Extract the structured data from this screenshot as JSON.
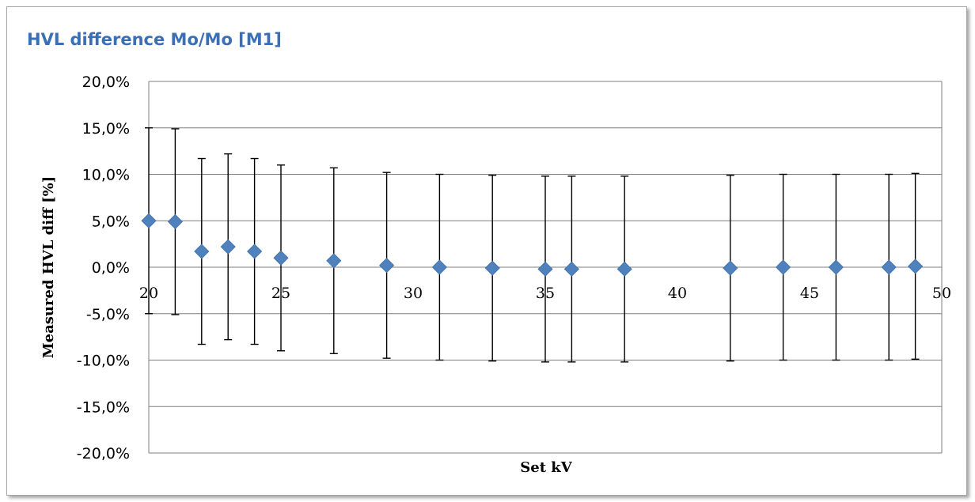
{
  "chart_data": {
    "type": "scatter",
    "title": "HVL difference Mo/Mo [M1]",
    "xlabel": "Set kV",
    "ylabel": "Measured  HVL diff [%]",
    "xlim": [
      20,
      50
    ],
    "ylim": [
      -20,
      20
    ],
    "x_ticks": [
      "20",
      "25",
      "30",
      "35",
      "40",
      "45",
      "50"
    ],
    "y_ticks": [
      "20,0%",
      "15,0%",
      "10,0%",
      "5,0%",
      "0,0%",
      "-5,0%",
      "-10,0%",
      "-15,0%",
      "-20,0%"
    ],
    "grid": "horizontal",
    "legend": "none",
    "marker": "diamond",
    "marker_color": "#4f81bd",
    "error_bar_color": "#000000",
    "points": [
      {
        "x": 20,
        "y": 5.0,
        "y_low": -5.0,
        "y_high": 15.0
      },
      {
        "x": 21,
        "y": 4.9,
        "y_low": -5.1,
        "y_high": 14.9
      },
      {
        "x": 22,
        "y": 1.7,
        "y_low": -8.3,
        "y_high": 11.7
      },
      {
        "x": 23,
        "y": 2.2,
        "y_low": -7.8,
        "y_high": 12.2
      },
      {
        "x": 24,
        "y": 1.7,
        "y_low": -8.3,
        "y_high": 11.7
      },
      {
        "x": 25,
        "y": 1.0,
        "y_low": -9.0,
        "y_high": 11.0
      },
      {
        "x": 27,
        "y": 0.7,
        "y_low": -9.3,
        "y_high": 10.7
      },
      {
        "x": 29,
        "y": 0.2,
        "y_low": -9.8,
        "y_high": 10.2
      },
      {
        "x": 31,
        "y": 0.0,
        "y_low": -10.0,
        "y_high": 10.0
      },
      {
        "x": 33,
        "y": -0.1,
        "y_low": -10.1,
        "y_high": 9.9
      },
      {
        "x": 35,
        "y": -0.2,
        "y_low": -10.2,
        "y_high": 9.8
      },
      {
        "x": 36,
        "y": -0.2,
        "y_low": -10.2,
        "y_high": 9.8
      },
      {
        "x": 38,
        "y": -0.2,
        "y_low": -10.2,
        "y_high": 9.8
      },
      {
        "x": 42,
        "y": -0.1,
        "y_low": -10.1,
        "y_high": 9.9
      },
      {
        "x": 44,
        "y": 0.0,
        "y_low": -10.0,
        "y_high": 10.0
      },
      {
        "x": 46,
        "y": 0.0,
        "y_low": -10.0,
        "y_high": 10.0
      },
      {
        "x": 48,
        "y": 0.0,
        "y_low": -10.0,
        "y_high": 10.0
      },
      {
        "x": 49,
        "y": 0.1,
        "y_low": -9.9,
        "y_high": 10.1
      }
    ]
  }
}
